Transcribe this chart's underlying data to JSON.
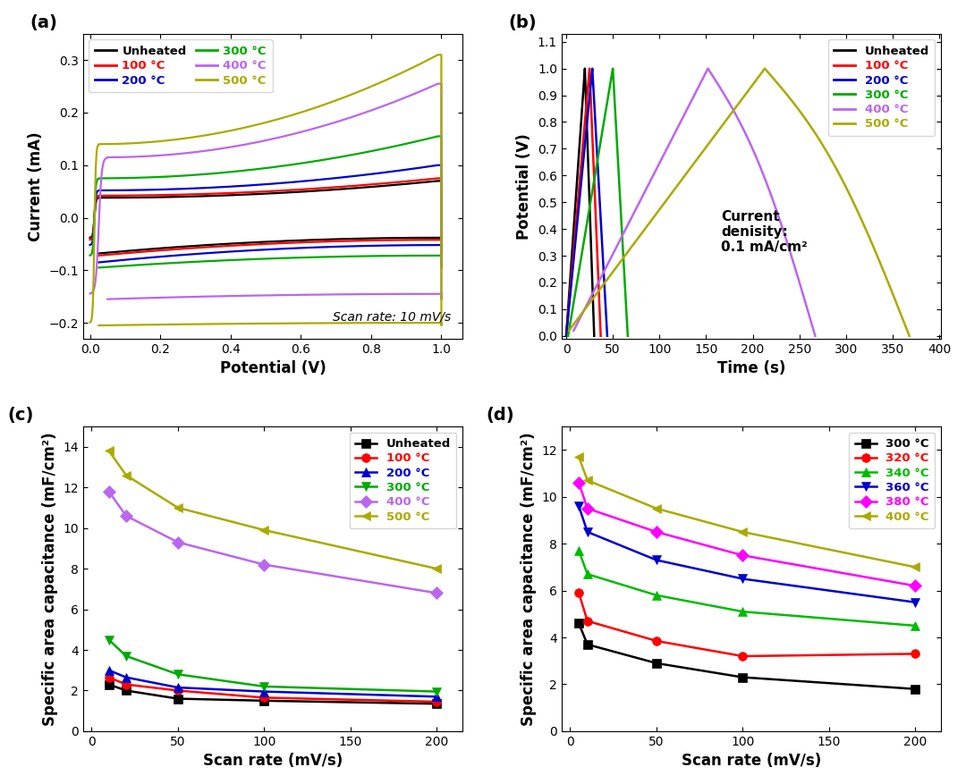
{
  "colors": {
    "unheated": "#000000",
    "100C": "#ff0000",
    "200C": "#0000cd",
    "300C": "#00aa00",
    "400C": "#bb66ee",
    "500C": "#aaaa00",
    "320C": "#ff0000",
    "340C": "#00bb00",
    "360C": "#0000cd",
    "380C": "#ff00ff",
    "400C_d": "#999900"
  },
  "panel_a": {
    "xlabel": "Potential (V)",
    "ylabel": "Current (mA)",
    "annotation": "Scan rate: 10 mV/s",
    "xlim": [
      -0.02,
      1.06
    ],
    "ylim": [
      -0.23,
      0.35
    ],
    "xticks": [
      0.0,
      0.2,
      0.4,
      0.6,
      0.8,
      1.0
    ],
    "yticks": [
      -0.2,
      -0.1,
      0.0,
      0.1,
      0.2,
      0.3
    ]
  },
  "panel_b": {
    "xlabel": "Time (s)",
    "ylabel": "Potential (V)",
    "xlim": [
      -5,
      402
    ],
    "ylim": [
      -0.01,
      1.13
    ],
    "xticks": [
      0,
      50,
      100,
      150,
      200,
      250,
      300,
      350,
      400
    ],
    "yticks": [
      0.0,
      0.1,
      0.2,
      0.3,
      0.4,
      0.5,
      0.6,
      0.7,
      0.8,
      0.9,
      1.0,
      1.1
    ]
  },
  "panel_c": {
    "xlabel": "Scan rate (mV/s)",
    "ylabel": "Specific area capacitance (mF/cm²)",
    "xlim": [
      -5,
      215
    ],
    "ylim": [
      0,
      15
    ],
    "xticks": [
      0,
      50,
      100,
      150,
      200
    ],
    "yticks": [
      0,
      2,
      4,
      6,
      8,
      10,
      12,
      14
    ],
    "scan_rates": [
      10,
      20,
      50,
      100,
      200
    ],
    "data": {
      "unheated": [
        2.3,
        2.0,
        1.6,
        1.5,
        1.35
      ],
      "100C": [
        2.65,
        2.3,
        2.0,
        1.65,
        1.45
      ],
      "200C": [
        3.0,
        2.65,
        2.15,
        1.95,
        1.7
      ],
      "300C": [
        4.5,
        3.7,
        2.8,
        2.2,
        1.95
      ],
      "400C": [
        11.8,
        10.6,
        9.3,
        8.2,
        6.8
      ],
      "500C": [
        13.8,
        12.6,
        11.0,
        9.9,
        8.0
      ]
    }
  },
  "panel_d": {
    "xlabel": "Scan rate (mV/s)",
    "ylabel": "Specific area capacitance (mF/cm²)",
    "xlim": [
      -5,
      215
    ],
    "ylim": [
      0,
      13
    ],
    "xticks": [
      0,
      50,
      100,
      150,
      200
    ],
    "yticks": [
      0,
      2,
      4,
      6,
      8,
      10,
      12
    ],
    "scan_rates": [
      5,
      10,
      50,
      100,
      200
    ],
    "data": {
      "300C": [
        4.6,
        3.7,
        2.9,
        2.3,
        1.8
      ],
      "320C": [
        5.9,
        4.7,
        3.85,
        3.2,
        3.3
      ],
      "340C": [
        7.7,
        6.7,
        5.8,
        5.1,
        4.5
      ],
      "360C": [
        9.6,
        8.5,
        7.3,
        6.5,
        5.5
      ],
      "380C": [
        10.6,
        9.5,
        8.5,
        7.5,
        6.2
      ],
      "400C": [
        11.7,
        10.7,
        9.5,
        8.5,
        7.0
      ]
    }
  }
}
